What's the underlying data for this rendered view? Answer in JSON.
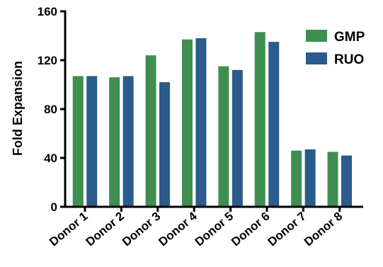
{
  "chart_data": {
    "type": "bar",
    "title": "",
    "xlabel": "",
    "ylabel": "Fold Expansion",
    "ylim": [
      0,
      160
    ],
    "yticks": [
      0,
      40,
      80,
      120,
      160
    ],
    "categories": [
      "Donor 1",
      "Donor 2",
      "Donor 3",
      "Donor 4",
      "Donor 5",
      "Donor 6",
      "Donor 7",
      "Donor 8"
    ],
    "series": [
      {
        "name": "GMP",
        "color": "#3e8f4f",
        "values": [
          107,
          106,
          124,
          137,
          115,
          143,
          46,
          45
        ]
      },
      {
        "name": "RUO",
        "color": "#2a5b8c",
        "values": [
          107,
          107,
          102,
          138,
          112,
          135,
          47,
          42
        ]
      }
    ],
    "legend_position": "top-right",
    "grid": false
  }
}
